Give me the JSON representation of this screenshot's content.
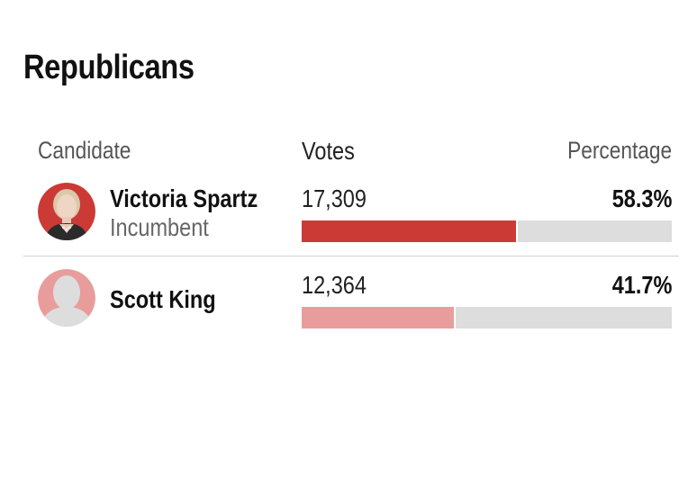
{
  "section_title": "Republicans",
  "columns": {
    "candidate": "Candidate",
    "votes": "Votes",
    "percentage": "Percentage"
  },
  "colors": {
    "winner": "#cc3a36",
    "runner_up": "#e89d9c",
    "track": "#dddddd"
  },
  "candidates": [
    {
      "name": "Victoria Spartz",
      "status": "Incumbent",
      "votes": "17,309",
      "percentage": "58.3%",
      "share": 0.583,
      "avatar": "candidate-photo"
    },
    {
      "name": "Scott King",
      "votes": "12,364",
      "percentage": "41.7%",
      "share": 0.417,
      "avatar": "placeholder-silhouette-icon"
    }
  ]
}
